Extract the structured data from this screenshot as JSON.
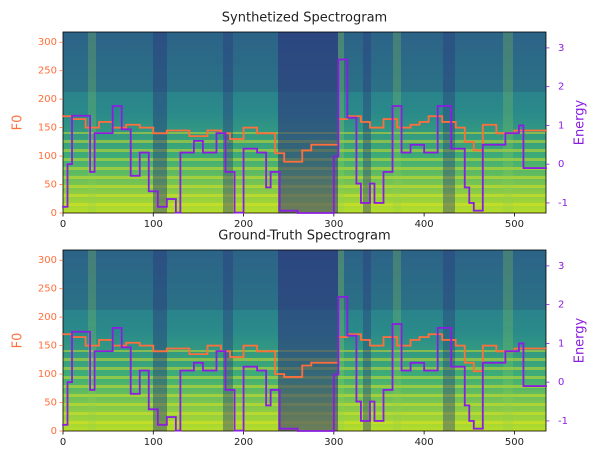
{
  "chart_data": [
    {
      "type": "line",
      "title": "Synthetized Spectrogram",
      "drawstyle": "steps-post",
      "xlim": [
        0,
        535
      ],
      "xticks": [
        0,
        100,
        200,
        300,
        400,
        500
      ],
      "ylim": [
        0,
        318
      ],
      "yticks": [
        0,
        50,
        100,
        150,
        200,
        250,
        300
      ],
      "y2lim": [
        -1.26,
        3.41
      ],
      "y2ticks": [
        -1,
        0,
        1,
        2,
        3
      ],
      "series": [
        {
          "name": "F0",
          "color": "#ff6f3c",
          "x": [
            0,
            10,
            25,
            40,
            55,
            70,
            85,
            100,
            115,
            140,
            160,
            175,
            185,
            200,
            215,
            235,
            245,
            265,
            275,
            300,
            305,
            315,
            330,
            340,
            355,
            370,
            385,
            395,
            405,
            420,
            435,
            445,
            455,
            465,
            480,
            500
          ],
          "values": [
            170,
            165,
            150,
            160,
            150,
            155,
            150,
            140,
            145,
            135,
            145,
            140,
            130,
            150,
            140,
            105,
            90,
            110,
            120,
            120,
            165,
            170,
            160,
            150,
            165,
            150,
            155,
            160,
            170,
            160,
            150,
            125,
            110,
            155,
            140,
            145
          ]
        },
        {
          "name": "Energy",
          "color": "#8a1ee0",
          "axis": "y2",
          "x": [
            0,
            5,
            10,
            30,
            35,
            55,
            65,
            75,
            85,
            95,
            105,
            115,
            125,
            130,
            145,
            155,
            170,
            180,
            190,
            200,
            215,
            225,
            230,
            240,
            260,
            300,
            305,
            315,
            325,
            330,
            340,
            345,
            355,
            365,
            375,
            385,
            400,
            415,
            430,
            445,
            450,
            455,
            465,
            490,
            505,
            510
          ],
          "values": [
            -1.1,
            0,
            1.25,
            -0.2,
            0.8,
            1.5,
            0.9,
            -0.3,
            0.3,
            -0.7,
            -1.1,
            -0.9,
            -1.25,
            0.3,
            0.6,
            0.3,
            0.8,
            -0.2,
            -1.25,
            0.4,
            0.3,
            -0.6,
            -0.2,
            -1.2,
            -1.26,
            0.2,
            2.7,
            1.2,
            -0.5,
            -1.0,
            -0.5,
            -1.0,
            -0.2,
            1.5,
            0.3,
            0.5,
            0.3,
            1.5,
            0.4,
            -0.6,
            -1.0,
            -1.2,
            0.5,
            0.8,
            1.0,
            -0.1
          ]
        }
      ]
    },
    {
      "type": "line",
      "title": "Ground-Truth Spectrogram",
      "drawstyle": "steps-post",
      "xlim": [
        0,
        535
      ],
      "xticks": [
        0,
        100,
        200,
        300,
        400,
        500
      ],
      "ylim": [
        0,
        318
      ],
      "yticks": [
        0,
        50,
        100,
        150,
        200,
        250,
        300
      ],
      "y2lim": [
        -1.26,
        3.41
      ],
      "y2ticks": [
        -1,
        0,
        1,
        2,
        3
      ],
      "series": [
        {
          "name": "F0",
          "color": "#ff6f3c",
          "x": [
            0,
            10,
            25,
            40,
            55,
            70,
            85,
            100,
            115,
            140,
            160,
            175,
            185,
            200,
            215,
            235,
            245,
            265,
            275,
            300,
            305,
            315,
            330,
            340,
            355,
            370,
            385,
            395,
            405,
            420,
            435,
            445,
            455,
            465,
            480,
            500
          ],
          "values": [
            170,
            165,
            150,
            160,
            150,
            155,
            150,
            140,
            145,
            135,
            150,
            140,
            130,
            150,
            140,
            100,
            95,
            115,
            120,
            120,
            165,
            170,
            160,
            150,
            165,
            150,
            160,
            165,
            170,
            160,
            150,
            120,
            105,
            150,
            140,
            145
          ]
        },
        {
          "name": "Energy",
          "color": "#8a1ee0",
          "axis": "y2",
          "x": [
            0,
            5,
            10,
            30,
            35,
            55,
            65,
            75,
            85,
            95,
            105,
            115,
            125,
            130,
            145,
            155,
            170,
            180,
            190,
            200,
            215,
            225,
            230,
            240,
            260,
            300,
            305,
            315,
            325,
            330,
            340,
            345,
            355,
            365,
            375,
            385,
            400,
            415,
            430,
            445,
            450,
            455,
            465,
            490,
            505,
            510
          ],
          "values": [
            -1.1,
            0,
            1.3,
            -0.2,
            0.8,
            1.4,
            0.9,
            -0.3,
            0.3,
            -0.7,
            -1.1,
            -0.9,
            -1.25,
            0.3,
            0.5,
            0.3,
            0.8,
            -0.2,
            -1.25,
            0.4,
            0.3,
            -0.6,
            -0.2,
            -1.2,
            -1.26,
            0.2,
            2.2,
            1.2,
            -0.5,
            -1.0,
            -0.5,
            -1.0,
            -0.2,
            1.5,
            0.3,
            0.5,
            0.3,
            1.4,
            0.4,
            -0.6,
            -1.0,
            -1.2,
            0.5,
            0.8,
            1.0,
            -0.1
          ]
        }
      ]
    }
  ]
}
